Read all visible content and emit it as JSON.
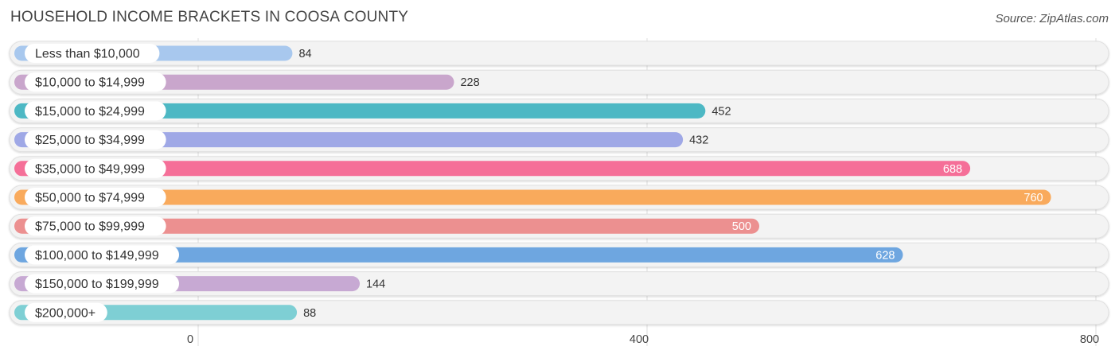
{
  "title": "HOUSEHOLD INCOME BRACKETS IN COOSA COUNTY",
  "source": "Source: ZipAtlas.com",
  "chart_data": {
    "type": "bar",
    "orientation": "horizontal",
    "title": "HOUSEHOLD INCOME BRACKETS IN COOSA COUNTY",
    "categories": [
      "Less than $10,000",
      "$10,000 to $14,999",
      "$15,000 to $24,999",
      "$25,000 to $34,999",
      "$35,000 to $49,999",
      "$50,000 to $74,999",
      "$75,000 to $99,999",
      "$100,000 to $149,999",
      "$150,000 to $199,999",
      "$200,000+"
    ],
    "values": [
      84,
      228,
      452,
      432,
      688,
      760,
      500,
      628,
      144,
      88
    ],
    "colors": [
      "#a8c8ee",
      "#c9a6cc",
      "#4db8c4",
      "#9fa8e6",
      "#f56f98",
      "#f9aa5c",
      "#ec9090",
      "#6ea6e0",
      "#c7a9d3",
      "#7ecfd4"
    ],
    "xticks": [
      0,
      400,
      800
    ],
    "xlim": [
      0,
      800
    ],
    "grid": true,
    "value_labels": true
  }
}
